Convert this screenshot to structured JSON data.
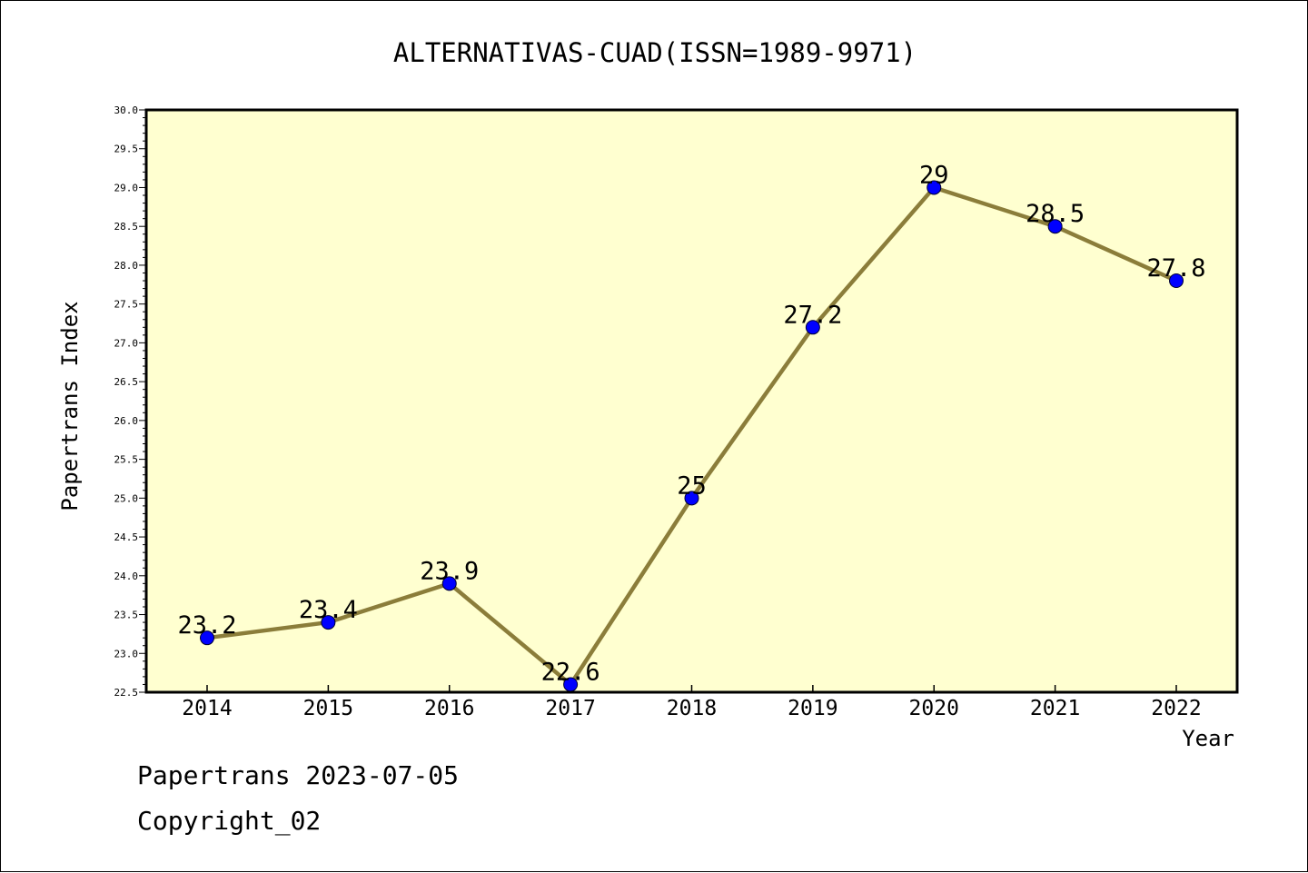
{
  "chart_data": {
    "type": "line",
    "title": "ALTERNATIVAS-CUAD(ISSN=1989-9971)",
    "xlabel": "Year",
    "ylabel": "Papertrans Index",
    "categories": [
      "2014",
      "2015",
      "2016",
      "2017",
      "2018",
      "2019",
      "2020",
      "2021",
      "2022"
    ],
    "series": [
      {
        "values": [
          23.2,
          23.4,
          23.9,
          22.6,
          25,
          27.2,
          29,
          28.5,
          27.8
        ]
      }
    ],
    "data_labels": [
      "23.2",
      "23.4",
      "23.9",
      "22.6",
      "25",
      "27.2",
      "29",
      "28.5",
      "27.8"
    ],
    "ylim": [
      22.5,
      30.0
    ],
    "yticks": [
      "22.5",
      "23.0",
      "23.5",
      "24.0",
      "24.5",
      "25.0",
      "25.5",
      "26.0",
      "26.5",
      "27.0",
      "27.5",
      "28.0",
      "28.5",
      "29.0",
      "29.5",
      "30.0"
    ],
    "grid": false,
    "colors": {
      "plot_background": "#FFFFD0",
      "line": "#8B7D3A",
      "marker": "#0000FF",
      "axis": "#000000"
    }
  },
  "footer": {
    "line1": "Papertrans 2023-07-05",
    "line2": "Copyright_02"
  }
}
